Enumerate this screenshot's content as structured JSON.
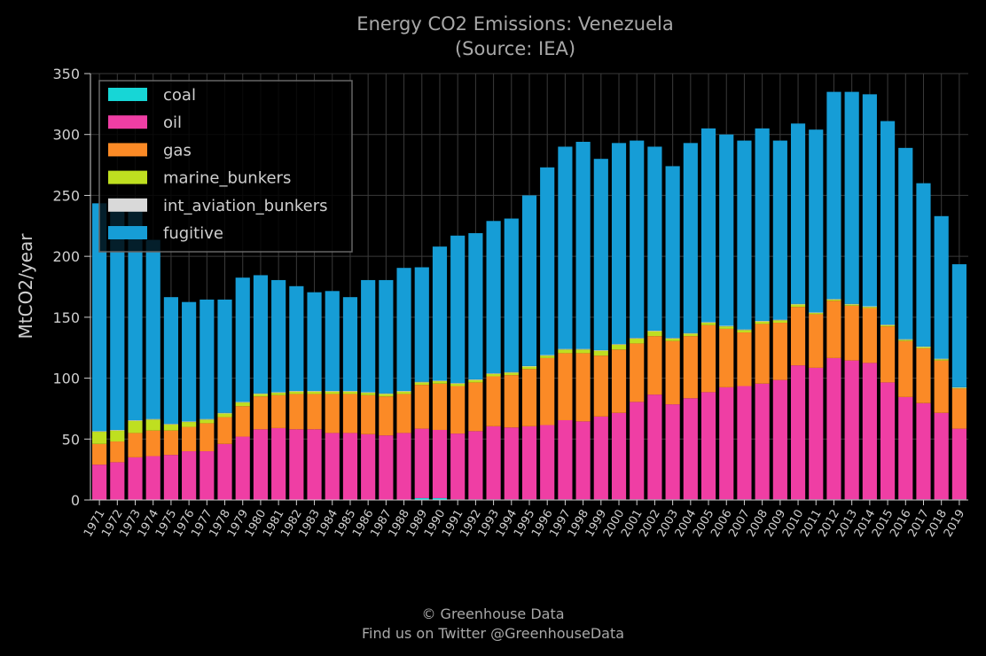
{
  "chart_data": {
    "type": "bar",
    "stacked": true,
    "title": "Energy CO2 Emissions: Venezuela",
    "subtitle": "(Source: IEA)",
    "xlabel": "",
    "ylabel": "MtCO2/year",
    "ylim": [
      0,
      350
    ],
    "yticks": [
      0,
      50,
      100,
      150,
      200,
      250,
      300,
      350
    ],
    "grid": true,
    "legend_position": "top-left",
    "categories": [
      "1971",
      "1972",
      "1973",
      "1974",
      "1975",
      "1976",
      "1977",
      "1978",
      "1979",
      "1980",
      "1981",
      "1982",
      "1983",
      "1984",
      "1985",
      "1986",
      "1987",
      "1988",
      "1989",
      "1990",
      "1991",
      "1992",
      "1993",
      "1994",
      "1995",
      "1996",
      "1997",
      "1998",
      "1999",
      "2000",
      "2001",
      "2002",
      "2003",
      "2004",
      "2005",
      "2006",
      "2007",
      "2008",
      "2009",
      "2010",
      "2011",
      "2012",
      "2013",
      "2014",
      "2015",
      "2016",
      "2017",
      "2018",
      "2019"
    ],
    "series": [
      {
        "name": "coal",
        "color": "#17d6d6",
        "values": [
          0,
          0,
          0,
          0,
          0,
          0,
          0,
          0,
          0,
          0,
          0,
          0,
          0,
          0,
          0,
          0,
          0,
          0,
          1.5,
          1.5,
          0.5,
          0.5,
          0.5,
          0.5,
          0.5,
          0.5,
          0.5,
          0.5,
          0.5,
          0.5,
          0.5,
          0.5,
          0.5,
          0.5,
          0.5,
          0.5,
          0.5,
          0.5,
          0.5,
          0.5,
          0.5,
          0.5,
          0.5,
          0.5,
          0.5,
          0.5,
          0.5,
          0.5,
          0.5
        ]
      },
      {
        "name": "oil",
        "color": "#ef3ea4",
        "values": [
          29,
          31,
          35,
          36,
          37,
          40,
          40,
          46,
          52,
          58,
          59,
          58,
          58,
          55,
          55,
          54,
          53,
          55,
          57,
          56,
          54,
          56,
          60,
          59,
          60,
          61,
          65,
          64,
          68,
          71,
          80,
          86,
          78,
          83,
          88,
          92,
          93,
          95,
          98,
          110,
          108,
          116,
          114,
          112,
          96,
          84,
          79,
          71,
          58
        ]
      },
      {
        "name": "gas",
        "color": "#fb8a26",
        "values": [
          17,
          17,
          20,
          21,
          20,
          20,
          23,
          22,
          25,
          27,
          27,
          29,
          29,
          32,
          32,
          32,
          32,
          32,
          36,
          38,
          39,
          40,
          41,
          43,
          47,
          55,
          55,
          56,
          50,
          52,
          48,
          48,
          52,
          51,
          55,
          48,
          44,
          49,
          47,
          48,
          44,
          47,
          45,
          45,
          46,
          46,
          45,
          43,
          33
        ]
      },
      {
        "name": "marine_bunkers",
        "color": "#bfdf20",
        "values": [
          10,
          9,
          10,
          9,
          5,
          4,
          3,
          3,
          3,
          2,
          2,
          2,
          2,
          2,
          2,
          2,
          2,
          2,
          2,
          2,
          2,
          2,
          2,
          2,
          2,
          2,
          3,
          3,
          4,
          4,
          4,
          4,
          2,
          2,
          2,
          2,
          2,
          2,
          2,
          2,
          1,
          1,
          1,
          1,
          1,
          1,
          1,
          1,
          0.5
        ]
      },
      {
        "name": "int_aviation_bunkers",
        "color": "#d9d9d9",
        "values": [
          0.5,
          0.5,
          0.5,
          0.5,
          0.5,
          0.5,
          0.5,
          0.5,
          0.5,
          0.5,
          0.5,
          0.5,
          0.5,
          0.5,
          0.5,
          0.5,
          0.5,
          0.5,
          0.5,
          0.5,
          0.5,
          0.5,
          0.5,
          0.5,
          0.5,
          0.5,
          0.5,
          0.5,
          0.5,
          0.5,
          0.5,
          0.5,
          0.5,
          0.5,
          0.5,
          0.5,
          0.5,
          0.5,
          0.5,
          0.5,
          0.5,
          0.5,
          0.5,
          0.5,
          0.5,
          0.5,
          0.5,
          0.5,
          0.5
        ]
      },
      {
        "name": "fugitive",
        "color": "#169dd6",
        "values": [
          187,
          190,
          181,
          147,
          104,
          98,
          98,
          93,
          102,
          97,
          92,
          86,
          81,
          82,
          77,
          92,
          93,
          101,
          94,
          110,
          121,
          120,
          125,
          126,
          140,
          154,
          166,
          170,
          157,
          165,
          162,
          151,
          141,
          156,
          159,
          157,
          155,
          158,
          147,
          148,
          150,
          170,
          174,
          174,
          167,
          157,
          134,
          117,
          101
        ]
      }
    ]
  },
  "footer": {
    "line1": "© Greenhouse Data",
    "line2": "Find us on Twitter @GreenhouseData"
  }
}
